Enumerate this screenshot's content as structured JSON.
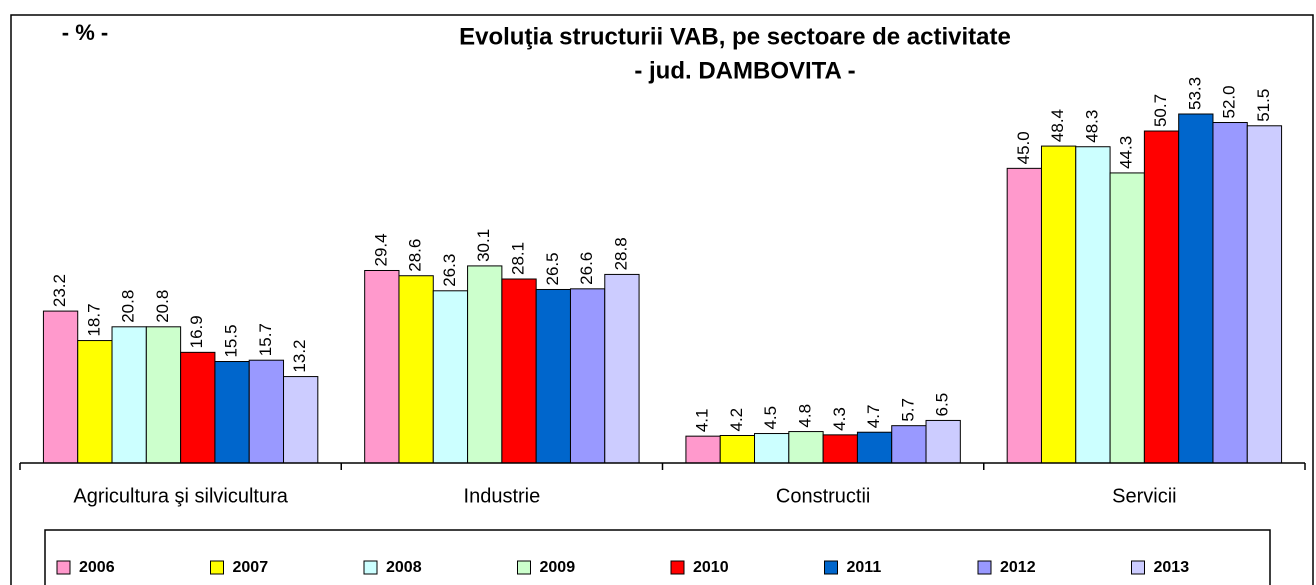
{
  "chart_data": {
    "type": "bar",
    "title": "Evoluţia structurii VAB, pe sectoare de activitate",
    "subtitle": "- jud. DAMBOVITA -",
    "unit_label": "- % -",
    "categories": [
      "Agricultura şi silvicultura",
      "Industrie",
      "Constructii",
      "Servicii"
    ],
    "series": [
      {
        "name": "2006",
        "color": "#ff99cc",
        "values": [
          23.2,
          29.4,
          4.1,
          45.0
        ],
        "value_labels": [
          "23.2",
          "29.4",
          "4.1",
          "45.0"
        ]
      },
      {
        "name": "2007",
        "color": "#ffff00",
        "values": [
          18.7,
          28.6,
          4.2,
          48.4
        ],
        "value_labels": [
          "18.7",
          "28.6",
          "4.2",
          "48.4"
        ]
      },
      {
        "name": "2008",
        "color": "#ccffff",
        "values": [
          20.8,
          26.3,
          4.5,
          48.3
        ],
        "value_labels": [
          "20.8",
          "26.3",
          "4.5",
          "48.3"
        ]
      },
      {
        "name": "2009",
        "color": "#ccffcc",
        "values": [
          20.8,
          30.1,
          4.8,
          44.3
        ],
        "value_labels": [
          "20.8",
          "30.1",
          "4.8",
          "44.3"
        ]
      },
      {
        "name": "2010",
        "color": "#ff0000",
        "values": [
          16.9,
          28.1,
          4.3,
          50.7
        ],
        "value_labels": [
          "16.9",
          "28.1",
          "4.3",
          "50.7"
        ]
      },
      {
        "name": "2011",
        "color": "#0066cc",
        "values": [
          15.5,
          26.5,
          4.7,
          53.3
        ],
        "value_labels": [
          "15.5",
          "26.5",
          "4.7",
          "53.3"
        ]
      },
      {
        "name": "2012",
        "color": "#9999ff",
        "values": [
          15.7,
          26.6,
          5.7,
          52.0
        ],
        "value_labels": [
          "15.7",
          "26.6",
          "5.7",
          "52.0"
        ]
      },
      {
        "name": "2013",
        "color": "#ccccff",
        "values": [
          13.2,
          28.8,
          6.5,
          51.5
        ],
        "value_labels": [
          "13.2",
          "28.8",
          "6.5",
          "51.5"
        ]
      }
    ]
  }
}
